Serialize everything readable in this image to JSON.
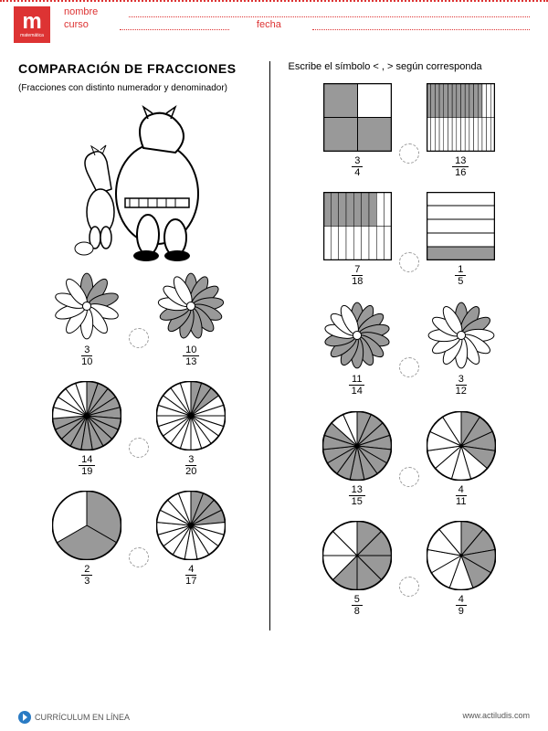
{
  "header": {
    "logo_letter": "m",
    "logo_sub": "matemática",
    "nombre": "nombre",
    "curso": "curso",
    "fecha": "fecha"
  },
  "title": "COMPARACIÓN DE FRACCIONES",
  "subtitle": "(Fracciones con distinto numerador y denominador)",
  "instruction": "Escribe el símbolo < , > según corresponda",
  "colors": {
    "accent": "#d33",
    "fill": "#999999",
    "stroke": "#000000",
    "bg": "#ffffff"
  },
  "right_squares": [
    {
      "type": "grid2x2",
      "shaded": [
        0,
        2,
        3
      ],
      "frac": {
        "n": "3",
        "d": "4"
      }
    },
    {
      "type": "grid_cols",
      "cols": 16,
      "rows": 2,
      "shaded_count": 13,
      "frac": {
        "n": "13",
        "d": "16"
      }
    },
    {
      "type": "grid_cols",
      "cols": 9,
      "rows": 2,
      "shaded_count": 7,
      "frac": {
        "n": "7",
        "d": "18"
      }
    },
    {
      "type": "hbars",
      "bars": 5,
      "shaded": [
        4
      ],
      "frac": {
        "n": "1",
        "d": "5"
      }
    }
  ],
  "flower_rows": [
    {
      "left": [
        {
          "petals": 10,
          "shaded": 3,
          "frac": {
            "n": "3",
            "d": "10"
          }
        },
        {
          "petals": 13,
          "shaded": 10,
          "frac": {
            "n": "10",
            "d": "13"
          }
        }
      ],
      "right": [
        {
          "petals": 14,
          "shaded": 11,
          "frac": {
            "n": "11",
            "d": "14"
          }
        },
        {
          "petals": 12,
          "shaded": 3,
          "frac": {
            "n": "3",
            "d": "12"
          }
        }
      ]
    }
  ],
  "pie_rows": [
    {
      "left": [
        {
          "slices": 19,
          "shaded": 14,
          "frac": {
            "n": "14",
            "d": "19"
          }
        },
        {
          "slices": 20,
          "shaded": 3,
          "frac": {
            "n": "3",
            "d": "20"
          }
        }
      ],
      "right": [
        {
          "slices": 15,
          "shaded": 13,
          "frac": {
            "n": "13",
            "d": "15"
          }
        },
        {
          "slices": 11,
          "shaded": 4,
          "frac": {
            "n": "4",
            "d": "11"
          }
        }
      ]
    },
    {
      "left": [
        {
          "slices": 3,
          "shaded": 2,
          "frac": {
            "n": "2",
            "d": "3"
          }
        },
        {
          "slices": 17,
          "shaded": 4,
          "frac": {
            "n": "4",
            "d": "17"
          }
        }
      ],
      "right": [
        {
          "slices": 8,
          "shaded": 5,
          "frac": {
            "n": "5",
            "d": "8"
          }
        },
        {
          "slices": 9,
          "shaded": 4,
          "frac": {
            "n": "4",
            "d": "9"
          }
        }
      ]
    }
  ],
  "footer": {
    "left": "CURRÍCULUM EN LÍNEA",
    "right": "www.actiludis.com"
  }
}
